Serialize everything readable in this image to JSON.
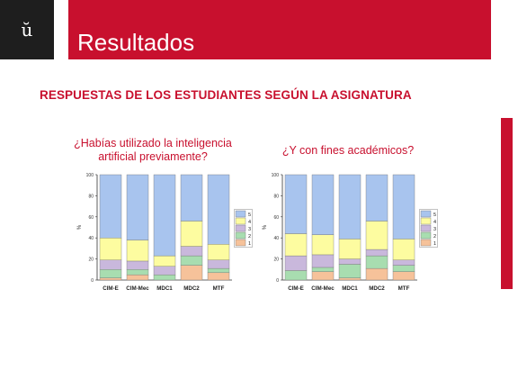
{
  "logo": {
    "glyph": "ŭ"
  },
  "header": {
    "title": "Resultados"
  },
  "subtitle": "RESPUESTAS DE LOS ESTUDIANTES SEGÚN LA ASIGNATURA",
  "colors": {
    "accent": "#c8102e",
    "s1": "#f6c29a",
    "s2": "#a8ddb0",
    "s3": "#c9b8dc",
    "s4": "#fdfca0",
    "s5": "#a8c4ee"
  },
  "chart_data": [
    {
      "type": "bar",
      "stacked": true,
      "title": "¿Habías utilizado la inteligencia artificial previamente?",
      "title_lines": [
        "¿Habías utilizado la inteligencia",
        "artificial previamente?"
      ],
      "ylabel": "%",
      "ylim": [
        0,
        100
      ],
      "yticks": [
        0,
        20,
        40,
        60,
        80,
        100
      ],
      "legend_position": "right",
      "categories": [
        "CIM-E",
        "CIM-Mec",
        "MDC1",
        "MDC2",
        "MTF"
      ],
      "series": [
        {
          "name": "1",
          "values": [
            2,
            5,
            0,
            14,
            7
          ]
        },
        {
          "name": "2",
          "values": [
            8,
            5,
            5,
            9,
            4
          ]
        },
        {
          "name": "3",
          "values": [
            9,
            8,
            8,
            9,
            8
          ]
        },
        {
          "name": "4",
          "values": [
            21,
            20,
            10,
            24,
            15
          ]
        },
        {
          "name": "5",
          "values": [
            60,
            62,
            77,
            44,
            66
          ]
        }
      ]
    },
    {
      "type": "bar",
      "stacked": true,
      "title": "¿Y con fines académicos?",
      "title_lines": [
        "¿Y con fines académicos?"
      ],
      "ylabel": "%",
      "ylim": [
        0,
        100
      ],
      "yticks": [
        0,
        20,
        40,
        60,
        80,
        100
      ],
      "legend_position": "right",
      "categories": [
        "CIM-E",
        "CIM-Mec",
        "MDC1",
        "MDC2",
        "MTF"
      ],
      "series": [
        {
          "name": "1",
          "values": [
            0,
            8,
            2,
            11,
            8
          ]
        },
        {
          "name": "2",
          "values": [
            9,
            4,
            13,
            12,
            6
          ]
        },
        {
          "name": "3",
          "values": [
            14,
            12,
            5,
            6,
            5
          ]
        },
        {
          "name": "4",
          "values": [
            21,
            19,
            19,
            27,
            20
          ]
        },
        {
          "name": "5",
          "values": [
            56,
            57,
            61,
            44,
            61
          ]
        }
      ]
    }
  ]
}
